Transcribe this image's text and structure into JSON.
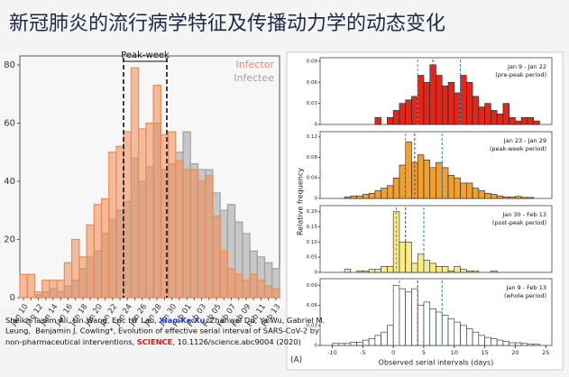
{
  "title": "新冠肺炎的流行病学特征及传播动力学的动态变化",
  "citation": {
    "line1": [
      "Sheikh Taslim Ali, Lin Wang, Eric HY Lau, ",
      "Xiao-Ke Xu",
      ", Zhanwei Du, Ye Wu, Gabriel M."
    ],
    "line2": "Leung,  Benjamin J. Cowling*, Evolution of effective serial interval of SARS-CoV-2 by",
    "line3": [
      "non-pharmaceutical interventions, ",
      "SCIENCE",
      ", 10.1126/science.abc9004 (2020)"
    ]
  },
  "panel_label": "(A)",
  "chart_data": [
    {
      "type": "bar",
      "annotation": "Peak-week",
      "categories": [
        "Jan 10",
        null,
        "Jan 12",
        null,
        "Jan 14",
        null,
        "Jan 16",
        null,
        "Jan 18",
        null,
        "Jan 20",
        null,
        "Jan 22",
        null,
        "Jan 24",
        null,
        "Jan 26",
        null,
        "Jan 28",
        null,
        "Jan 30",
        null,
        "Feb 01",
        null,
        "Feb 03",
        null,
        "Feb 05",
        null,
        "Feb 07",
        null,
        "Feb 09",
        null,
        "Feb 11",
        null,
        "Feb 13"
      ],
      "series": [
        {
          "name": "Infectee",
          "color": "#a0a0a0",
          "values": [
            0,
            0,
            1,
            2,
            3,
            2,
            4,
            6,
            10,
            14,
            16,
            22,
            27,
            30,
            33,
            48,
            40,
            45,
            60,
            44,
            46,
            50,
            57,
            46,
            44,
            44,
            36,
            30,
            32,
            26,
            22,
            16,
            14,
            12,
            10
          ]
        },
        {
          "name": "Infector",
          "color": "#ee8a55",
          "values": [
            8,
            8,
            2,
            6,
            6,
            6,
            12,
            20,
            14,
            25,
            32,
            34,
            50,
            52,
            57,
            79,
            58,
            60,
            73,
            56,
            57,
            47,
            44,
            44,
            40,
            42,
            28,
            16,
            10,
            8,
            6,
            8,
            6,
            4,
            3
          ]
        }
      ],
      "ylim": [
        0,
        80
      ],
      "yticks": [
        0,
        20,
        40,
        60,
        80
      ]
    },
    {
      "type": "histogram",
      "xlabel": "Observed serial intervals (days)",
      "ylabel": "Relative frequency",
      "xlim": [
        -12,
        26
      ],
      "xticks": [
        -10,
        -5,
        0,
        5,
        10,
        15,
        20,
        25
      ],
      "bins": [
        -10,
        -9,
        -8,
        -7,
        -6,
        -5,
        -4,
        -3,
        -2,
        -1,
        0,
        1,
        2,
        3,
        4,
        5,
        6,
        7,
        8,
        9,
        10,
        11,
        12,
        13,
        14,
        15,
        16,
        17,
        18,
        19,
        20,
        21,
        22,
        23,
        24
      ],
      "panels": [
        {
          "title": "Jan 9 - Jan 22",
          "subtitle": "(pre-peak period)",
          "color": "#e0281a",
          "values": [
            0,
            0,
            0,
            0,
            0,
            0,
            0,
            0.01,
            0,
            0.01,
            0.02,
            0.03,
            0.035,
            0.04,
            0.07,
            0.06,
            0.085,
            0.07,
            0.055,
            0.06,
            0.045,
            0.07,
            0.06,
            0.04,
            0.025,
            0.03,
            0.02,
            0.015,
            0.03,
            0.01,
            0.005,
            0.01,
            0.01,
            0.005
          ],
          "ylim": [
            0,
            0.095
          ],
          "yticks": [
            0,
            0.03,
            0.06,
            0.09
          ],
          "reference_lines": [
            {
              "value": 4,
              "color": "#888888"
            },
            {
              "value": 6.5,
              "color": "#b03040"
            },
            {
              "value": 11,
              "color": "#3a8ac0"
            }
          ]
        },
        {
          "title": "Jan 23 - Jan 29",
          "subtitle": "(peak-week period)",
          "color": "#f0a030",
          "values": [
            0,
            0,
            0.003,
            0.005,
            0.005,
            0.008,
            0.01,
            0.015,
            0.02,
            0.025,
            0.04,
            0.065,
            0.11,
            0.07,
            0.085,
            0.075,
            0.06,
            0.07,
            0.06,
            0.045,
            0.04,
            0.03,
            0.03,
            0.02,
            0.015,
            0.01,
            0.008,
            0.005,
            0.003,
            0.003,
            0.004,
            0.002,
            0.002,
            0
          ],
          "ylim": [
            0,
            0.13
          ],
          "yticks": [
            0,
            0.04,
            0.08,
            0.12
          ],
          "reference_lines": [
            {
              "value": 2,
              "color": "#888888"
            },
            {
              "value": 3.5,
              "color": "#b03040"
            },
            {
              "value": 8,
              "color": "#3a8ac0"
            }
          ]
        },
        {
          "title": "Jan 30 - Feb 13",
          "subtitle": "(post-peak period)",
          "color": "#f8eb8a",
          "values": [
            0,
            0,
            0.01,
            0,
            0.005,
            0.005,
            0.01,
            0.01,
            0.02,
            0.02,
            0.2,
            0.1,
            0.1,
            0.03,
            0.06,
            0.04,
            0.03,
            0.02,
            0.02,
            0.005,
            0.02,
            0.01,
            0.005,
            0.005,
            0,
            0,
            0.005,
            0,
            0,
            0,
            0,
            0,
            0,
            0
          ],
          "ylim": [
            0,
            0.22
          ],
          "yticks": [
            0,
            0.05,
            {
              "value": 0.1,
              "label": "0.10"
            },
            0.15,
            {
              "value": 0.2,
              "label": "0.20"
            }
          ],
          "reference_lines": [
            {
              "value": 0.5,
              "color": "#888888"
            },
            {
              "value": 2,
              "color": "#b03040"
            },
            {
              "value": 5,
              "color": "#3a8ac0"
            }
          ]
        },
        {
          "title": "Jan 9 - Feb 13",
          "subtitle": "(whole period)",
          "color": "#ffffff",
          "values": [
            0.003,
            0.003,
            0.003,
            0.005,
            0.005,
            0.008,
            0.01,
            0.015,
            0.02,
            0.03,
            0.09,
            0.085,
            0.08,
            0.085,
            0.06,
            0.065,
            0.055,
            0.05,
            0.045,
            0.04,
            0.035,
            0.03,
            0.025,
            0.02,
            0.015,
            0.012,
            0.01,
            0.008,
            0.006,
            0.004,
            0.004,
            0.003,
            0.002,
            0.002
          ],
          "ylim": [
            0,
            0.1
          ],
          "yticks": [
            0,
            0.03,
            0.06,
            0.09
          ],
          "reference_lines": [
            {
              "value": 1,
              "color": "#888888"
            },
            {
              "value": 4,
              "color": "#b03040"
            },
            {
              "value": 8,
              "color": "#3a8ac0"
            }
          ]
        }
      ]
    }
  ]
}
